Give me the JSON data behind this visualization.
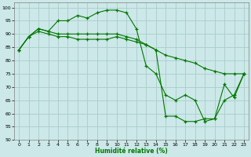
{
  "title": "",
  "xlabel": "Humidité relative (%)",
  "ylabel": "",
  "bg_color": "#cce8e8",
  "grid_color": "#aacccc",
  "line_color": "#007700",
  "xlim": [
    -0.5,
    23.5
  ],
  "ylim": [
    50,
    102
  ],
  "yticks": [
    50,
    55,
    60,
    65,
    70,
    75,
    80,
    85,
    90,
    95,
    100
  ],
  "xticks": [
    0,
    1,
    2,
    3,
    4,
    5,
    6,
    7,
    8,
    9,
    10,
    11,
    12,
    13,
    14,
    15,
    16,
    17,
    18,
    19,
    20,
    21,
    22,
    23
  ],
  "series": [
    {
      "x": [
        0,
        1,
        2,
        3,
        4,
        5,
        6,
        7,
        8,
        9,
        10,
        11,
        12,
        13,
        14,
        15,
        16,
        17,
        18,
        19,
        20,
        21,
        22,
        23
      ],
      "y": [
        84,
        89,
        92,
        91,
        95,
        95,
        97,
        96,
        98,
        99,
        99,
        98,
        92,
        78,
        75,
        67,
        65,
        67,
        65,
        57,
        58,
        71,
        66,
        75
      ]
    },
    {
      "x": [
        0,
        1,
        2,
        3,
        4,
        5,
        6,
        7,
        8,
        9,
        10,
        11,
        12,
        13,
        14,
        15,
        16,
        17,
        18,
        19,
        20,
        21,
        22,
        23
      ],
      "y": [
        84,
        89,
        91,
        90,
        89,
        89,
        88,
        88,
        88,
        88,
        89,
        88,
        87,
        86,
        84,
        82,
        81,
        80,
        79,
        77,
        76,
        75,
        75,
        75
      ]
    },
    {
      "x": [
        0,
        1,
        2,
        3,
        4,
        5,
        6,
        7,
        8,
        9,
        10,
        11,
        12,
        13,
        14,
        15,
        16,
        17,
        18,
        19,
        20,
        21,
        22,
        23
      ],
      "y": [
        84,
        89,
        92,
        91,
        90,
        90,
        90,
        90,
        90,
        90,
        90,
        89,
        88,
        86,
        84,
        59,
        59,
        57,
        57,
        58,
        58,
        65,
        67,
        75
      ]
    }
  ]
}
